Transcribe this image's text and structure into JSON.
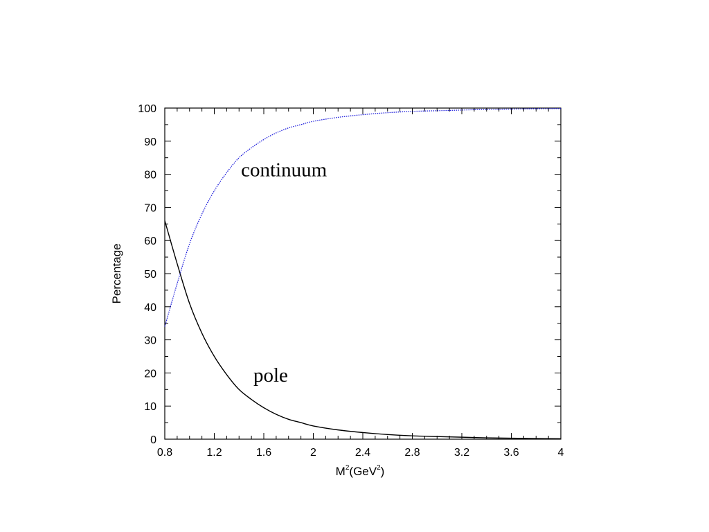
{
  "chart_data": {
    "type": "line",
    "title": "",
    "xlabel": {
      "base": "M",
      "sup": "2",
      "unit_open": "(GeV",
      "unit_sup": "2",
      "unit_close": ")"
    },
    "ylabel": "Percentage",
    "xlim": [
      0.8,
      4.0
    ],
    "ylim": [
      0,
      100
    ],
    "xticks": [
      0.8,
      1.2,
      1.6,
      2.0,
      2.4,
      2.8,
      3.2,
      3.6,
      4.0
    ],
    "xtick_labels": [
      "0.8",
      "1.2",
      "1.6",
      "2",
      "2.4",
      "2.8",
      "3.2",
      "3.6",
      "4"
    ],
    "yticks": [
      0,
      10,
      20,
      30,
      40,
      50,
      60,
      70,
      80,
      90,
      100
    ],
    "ytick_labels": [
      "0",
      "10",
      "20",
      "30",
      "40",
      "50",
      "60",
      "70",
      "80",
      "90",
      "100"
    ],
    "grid": false,
    "x": [
      0.8,
      0.9,
      1.0,
      1.1,
      1.2,
      1.3,
      1.4,
      1.5,
      1.6,
      1.7,
      1.8,
      1.9,
      2.0,
      2.2,
      2.4,
      2.6,
      2.8,
      3.0,
      3.2,
      3.4,
      3.6,
      3.8,
      4.0
    ],
    "series": [
      {
        "name": "pole",
        "color": "#000000",
        "dash": "solid",
        "values": [
          66,
          53,
          41,
          32,
          25,
          19.5,
          15,
          12,
          9.5,
          7.5,
          6,
          5,
          4,
          2.8,
          2,
          1.4,
          1.0,
          0.8,
          0.6,
          0.4,
          0.3,
          0.2,
          0.15
        ]
      },
      {
        "name": "continuum",
        "color": "#1a1adb",
        "dash": "dotted",
        "values": [
          34,
          47,
          59,
          68,
          75,
          80.5,
          85,
          88,
          90.5,
          92.5,
          94,
          95,
          96,
          97.2,
          98,
          98.6,
          99.0,
          99.2,
          99.4,
          99.6,
          99.7,
          99.8,
          99.85
        ]
      }
    ],
    "annotations": [
      {
        "text": "continuum",
        "x": 1.5,
        "y": 81.5
      },
      {
        "text": "pole",
        "x": 1.6,
        "y": 19.5
      }
    ]
  }
}
